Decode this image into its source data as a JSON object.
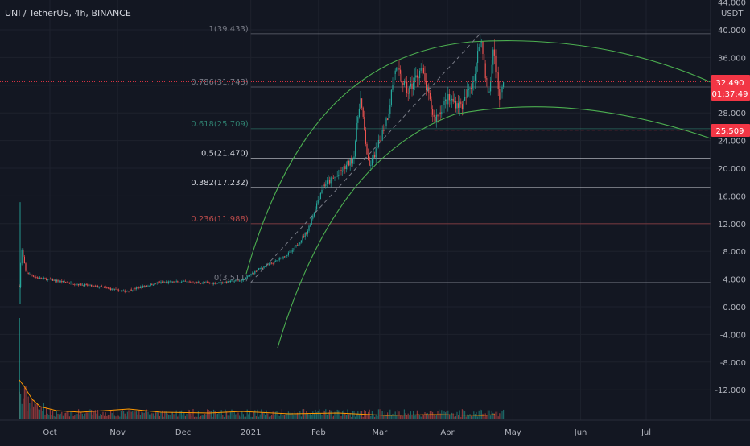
{
  "header": {
    "symbol": "UNI / TetherUS, 4h, BINANCE"
  },
  "axis": {
    "currency": "USDT",
    "y_ticks": [
      "44.000",
      "40.000",
      "36.000",
      "32.000",
      "28.000",
      "24.000",
      "20.000",
      "16.000",
      "12.000",
      "8.000",
      "4.000",
      "0.000",
      "-4.000",
      "-8.000",
      "-12.000"
    ],
    "x_ticks": [
      "Oct",
      "Nov",
      "Dec",
      "2021",
      "Feb",
      "Mar",
      "Apr",
      "May",
      "Jun",
      "Jul"
    ]
  },
  "tags": {
    "price": "32.490",
    "countdown": "01:37:49",
    "level": "25.509"
  },
  "colors": {
    "background": "#131722",
    "up": "#26a69a",
    "down": "#ef5350",
    "arc": "#4caf50",
    "price_tag": "#f23645"
  },
  "chart_data": {
    "type": "candlestick",
    "symbol": "UNI / TetherUS",
    "interval": "4h",
    "exchange": "BINANCE",
    "ylim": [
      -15,
      44
    ],
    "y_unit": "USDT",
    "last_price": 32.49,
    "candle_countdown": "01:37:49",
    "horizontal_level": 25.509,
    "x_labels": [
      "Oct",
      "Nov",
      "Dec",
      "2021",
      "Feb",
      "Mar",
      "Apr",
      "May",
      "Jun",
      "Jul"
    ],
    "price_path": [
      [
        "2020-09-17",
        3.0
      ],
      [
        "2020-09-18",
        8.5
      ],
      [
        "2020-09-20",
        5.0
      ],
      [
        "2020-09-25",
        4.2
      ],
      [
        "2020-10-05",
        3.7
      ],
      [
        "2020-10-15",
        3.2
      ],
      [
        "2020-10-25",
        2.8
      ],
      [
        "2020-11-04",
        2.2
      ],
      [
        "2020-11-10",
        2.7
      ],
      [
        "2020-11-20",
        3.5
      ],
      [
        "2020-12-01",
        3.6
      ],
      [
        "2020-12-15",
        3.4
      ],
      [
        "2020-12-28",
        3.8
      ],
      [
        "2021-01-05",
        5.5
      ],
      [
        "2021-01-12",
        6.5
      ],
      [
        "2021-01-20",
        8.0
      ],
      [
        "2021-01-27",
        11.0
      ],
      [
        "2021-02-03",
        17.5
      ],
      [
        "2021-02-10",
        19.0
      ],
      [
        "2021-02-17",
        21.5
      ],
      [
        "2021-02-20",
        30.5
      ],
      [
        "2021-02-24",
        20.0
      ],
      [
        "2021-02-28",
        23.0
      ],
      [
        "2021-03-05",
        28.0
      ],
      [
        "2021-03-08",
        34.5
      ],
      [
        "2021-03-14",
        31.0
      ],
      [
        "2021-03-20",
        34.5
      ],
      [
        "2021-03-26",
        27.0
      ],
      [
        "2021-04-01",
        30.0
      ],
      [
        "2021-04-08",
        29.0
      ],
      [
        "2021-04-14",
        34.0
      ],
      [
        "2021-04-16",
        39.4
      ],
      [
        "2021-04-20",
        30.0
      ],
      [
        "2021-04-22",
        37.5
      ],
      [
        "2021-04-25",
        30.0
      ],
      [
        "2021-04-27",
        32.49
      ]
    ],
    "fibonacci": [
      {
        "ratio": "1",
        "price": 39.433,
        "label": "1(39.433)",
        "color": "#787b86"
      },
      {
        "ratio": "0.786",
        "price": 31.743,
        "label": "0.786(31.743)",
        "color": "#787b86"
      },
      {
        "ratio": "0.618",
        "price": 25.709,
        "label": "0.618(25.709)",
        "color": "#2e7d6e"
      },
      {
        "ratio": "0.5",
        "price": 21.47,
        "label": "0.5(21.470)",
        "color": "#d1d4dc"
      },
      {
        "ratio": "0.382",
        "price": 17.232,
        "label": "0.382(17.232)",
        "color": "#d1d4dc"
      },
      {
        "ratio": "0.236",
        "price": 11.988,
        "label": "0.236(11.988)",
        "color": "#b84a4a"
      },
      {
        "ratio": "0",
        "price": 3.511,
        "label": "0(3.511)",
        "color": "#787b86"
      }
    ]
  }
}
